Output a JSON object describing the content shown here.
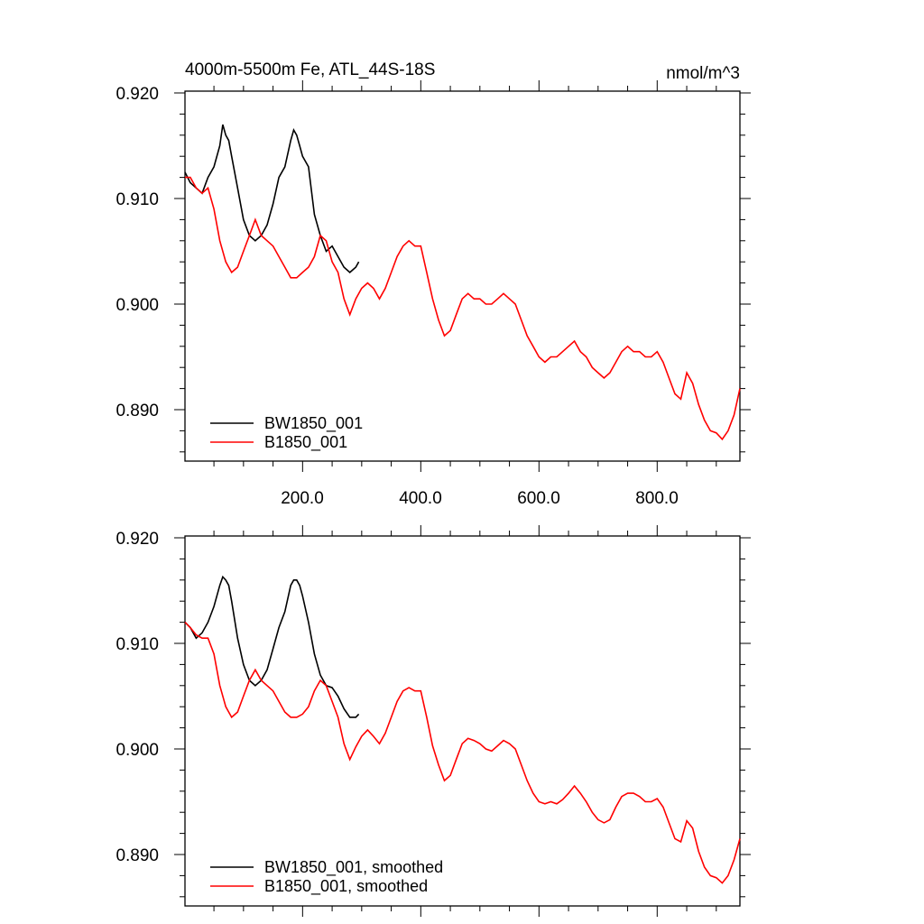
{
  "chart_data": [
    {
      "type": "line",
      "title": "4000m-5500m Fe, ATL_44S-18S",
      "units": "nmol/m^3",
      "xlim": [
        1,
        940
      ],
      "ylim": [
        0.885,
        0.92
      ],
      "xticks": [
        "200.0",
        "400.0",
        "600.0",
        "800.0"
      ],
      "yticks": [
        "0.920",
        "0.910",
        "0.900",
        "0.890"
      ],
      "legend_position": "bottom-left",
      "series": [
        {
          "name": "BW1850_001",
          "color": "#000000",
          "x": [
            1,
            10,
            20,
            30,
            40,
            50,
            60,
            65,
            70,
            75,
            80,
            90,
            100,
            110,
            120,
            130,
            140,
            150,
            160,
            170,
            180,
            185,
            190,
            195,
            200,
            210,
            220,
            230,
            240,
            250,
            260,
            270,
            280,
            290,
            295
          ],
          "y": [
            0.9125,
            0.9115,
            0.911,
            0.9105,
            0.912,
            0.913,
            0.915,
            0.917,
            0.916,
            0.9155,
            0.914,
            0.911,
            0.908,
            0.9065,
            0.906,
            0.9065,
            0.9075,
            0.9095,
            0.912,
            0.913,
            0.9155,
            0.9165,
            0.916,
            0.915,
            0.914,
            0.913,
            0.9085,
            0.9065,
            0.905,
            0.9055,
            0.9045,
            0.9035,
            0.903,
            0.9035,
            0.904
          ]
        },
        {
          "name": "B1850_001",
          "color": "#ff0000",
          "x": [
            1,
            10,
            20,
            30,
            40,
            50,
            60,
            70,
            80,
            90,
            100,
            110,
            120,
            130,
            140,
            150,
            160,
            170,
            180,
            190,
            200,
            210,
            220,
            230,
            240,
            250,
            260,
            270,
            280,
            290,
            300,
            310,
            320,
            330,
            340,
            350,
            360,
            370,
            380,
            390,
            400,
            410,
            420,
            430,
            440,
            450,
            460,
            470,
            480,
            490,
            500,
            510,
            520,
            530,
            540,
            550,
            560,
            570,
            580,
            590,
            600,
            610,
            620,
            630,
            640,
            650,
            660,
            670,
            680,
            690,
            700,
            710,
            720,
            730,
            740,
            750,
            760,
            770,
            780,
            790,
            800,
            810,
            820,
            830,
            840,
            850,
            860,
            870,
            880,
            890,
            900,
            910,
            920,
            930,
            940
          ],
          "y": [
            0.912,
            0.912,
            0.911,
            0.9105,
            0.911,
            0.909,
            0.906,
            0.904,
            0.903,
            0.9035,
            0.905,
            0.9065,
            0.908,
            0.9065,
            0.906,
            0.9055,
            0.9045,
            0.9035,
            0.9025,
            0.9025,
            0.903,
            0.9035,
            0.9045,
            0.9065,
            0.906,
            0.904,
            0.903,
            0.9005,
            0.899,
            0.9005,
            0.9015,
            0.902,
            0.9015,
            0.9005,
            0.9015,
            0.903,
            0.9045,
            0.9055,
            0.906,
            0.9055,
            0.9055,
            0.903,
            0.9005,
            0.8985,
            0.897,
            0.8975,
            0.899,
            0.9005,
            0.901,
            0.9005,
            0.9005,
            0.9,
            0.9,
            0.9005,
            0.901,
            0.9005,
            0.9,
            0.8985,
            0.897,
            0.896,
            0.895,
            0.8945,
            0.895,
            0.895,
            0.8955,
            0.896,
            0.8965,
            0.8955,
            0.895,
            0.894,
            0.8935,
            0.893,
            0.8935,
            0.8945,
            0.8955,
            0.896,
            0.8955,
            0.8955,
            0.895,
            0.895,
            0.8955,
            0.8945,
            0.893,
            0.8915,
            0.891,
            0.8935,
            0.8925,
            0.8905,
            0.889,
            0.888,
            0.8878,
            0.8872,
            0.888,
            0.8895,
            0.892
          ]
        }
      ]
    },
    {
      "type": "line",
      "xlim": [
        1,
        940
      ],
      "ylim": [
        0.885,
        0.92
      ],
      "yticks": [
        "0.920",
        "0.910",
        "0.900",
        "0.890"
      ],
      "legend_position": "bottom-left",
      "series": [
        {
          "name": "BW1850_001, smoothed",
          "color": "#000000",
          "x": [
            1,
            10,
            20,
            30,
            40,
            50,
            60,
            65,
            70,
            75,
            80,
            90,
            100,
            110,
            120,
            130,
            140,
            150,
            160,
            170,
            180,
            185,
            190,
            195,
            200,
            210,
            220,
            230,
            240,
            250,
            260,
            270,
            280,
            290,
            295
          ],
          "y": [
            0.912,
            0.9115,
            0.9105,
            0.911,
            0.912,
            0.9135,
            0.9155,
            0.9163,
            0.916,
            0.9155,
            0.914,
            0.9105,
            0.908,
            0.9065,
            0.906,
            0.9065,
            0.9075,
            0.9095,
            0.9115,
            0.913,
            0.9155,
            0.916,
            0.916,
            0.9155,
            0.9145,
            0.912,
            0.909,
            0.907,
            0.906,
            0.9058,
            0.905,
            0.9038,
            0.903,
            0.903,
            0.9033
          ]
        },
        {
          "name": "B1850_001, smoothed",
          "color": "#ff0000",
          "x": [
            1,
            10,
            20,
            30,
            40,
            50,
            60,
            70,
            80,
            90,
            100,
            110,
            120,
            130,
            140,
            150,
            160,
            170,
            180,
            190,
            200,
            210,
            220,
            230,
            240,
            250,
            260,
            270,
            280,
            290,
            300,
            310,
            320,
            330,
            340,
            350,
            360,
            370,
            380,
            390,
            400,
            410,
            420,
            430,
            440,
            450,
            460,
            470,
            480,
            490,
            500,
            510,
            520,
            530,
            540,
            550,
            560,
            570,
            580,
            590,
            600,
            610,
            620,
            630,
            640,
            650,
            660,
            670,
            680,
            690,
            700,
            710,
            720,
            730,
            740,
            750,
            760,
            770,
            780,
            790,
            800,
            810,
            820,
            830,
            840,
            850,
            860,
            870,
            880,
            890,
            900,
            910,
            920,
            930,
            940
          ],
          "y": [
            0.912,
            0.9115,
            0.9108,
            0.9105,
            0.9105,
            0.909,
            0.906,
            0.904,
            0.903,
            0.9035,
            0.905,
            0.9065,
            0.9075,
            0.9065,
            0.906,
            0.9055,
            0.9045,
            0.9035,
            0.903,
            0.903,
            0.9033,
            0.904,
            0.9055,
            0.9065,
            0.906,
            0.9045,
            0.903,
            0.9005,
            0.899,
            0.9002,
            0.9012,
            0.9018,
            0.9012,
            0.9005,
            0.9015,
            0.903,
            0.9045,
            0.9055,
            0.9058,
            0.9055,
            0.9055,
            0.903,
            0.9003,
            0.8985,
            0.897,
            0.8975,
            0.899,
            0.9005,
            0.901,
            0.9008,
            0.9005,
            0.9,
            0.8998,
            0.9003,
            0.9008,
            0.9005,
            0.9,
            0.8985,
            0.897,
            0.8958,
            0.895,
            0.8948,
            0.895,
            0.8948,
            0.8952,
            0.8958,
            0.8965,
            0.8958,
            0.895,
            0.894,
            0.8933,
            0.893,
            0.8933,
            0.8945,
            0.8955,
            0.8958,
            0.8958,
            0.8955,
            0.895,
            0.895,
            0.8953,
            0.8945,
            0.893,
            0.8915,
            0.8912,
            0.8932,
            0.8925,
            0.8903,
            0.8888,
            0.888,
            0.8878,
            0.8873,
            0.888,
            0.8895,
            0.8915
          ]
        }
      ]
    }
  ]
}
